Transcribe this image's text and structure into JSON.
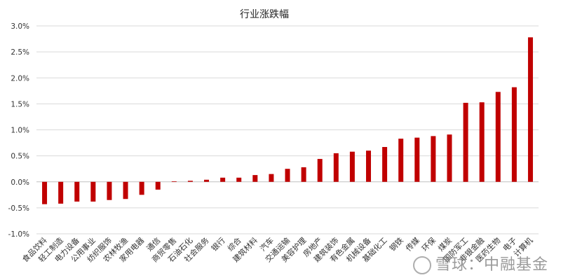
{
  "chart_data": {
    "type": "bar",
    "title": "行业涨跌幅",
    "xlabel": "",
    "ylabel": "",
    "ylim": [
      -1.0,
      3.0
    ],
    "yticks": [
      "3.0%",
      "2.5%",
      "2.0%",
      "1.5%",
      "1.0%",
      "0.5%",
      "0.0%",
      "-0.5%",
      "-1.0%"
    ],
    "ytick_values": [
      3.0,
      2.5,
      2.0,
      1.5,
      1.0,
      0.5,
      0.0,
      -0.5,
      -1.0
    ],
    "grid": "horizontal",
    "bar_color": "#c00000",
    "categories": [
      "食品饮料",
      "轻工制造",
      "电力设备",
      "公用事业",
      "纺织服饰",
      "农林牧渔",
      "家用电器",
      "通信",
      "商贸零售",
      "石油石化",
      "社会服务",
      "银行",
      "综合",
      "建筑材料",
      "汽车",
      "交通运输",
      "美容护理",
      "房地产",
      "建筑装饰",
      "有色金属",
      "机械设备",
      "基础化工",
      "钢铁",
      "传媒",
      "环保",
      "煤炭",
      "国防军工",
      "非银金融",
      "医药生物",
      "电子",
      "计算机"
    ],
    "values": [
      -0.43,
      -0.42,
      -0.38,
      -0.38,
      -0.35,
      -0.33,
      -0.25,
      -0.15,
      0.01,
      0.02,
      0.04,
      0.08,
      0.08,
      0.13,
      0.15,
      0.25,
      0.28,
      0.44,
      0.55,
      0.58,
      0.6,
      0.67,
      0.83,
      0.85,
      0.88,
      0.91,
      1.52,
      1.53,
      1.73,
      1.82,
      2.78
    ],
    "unit": "%"
  },
  "watermark": "雪球：中融基金"
}
